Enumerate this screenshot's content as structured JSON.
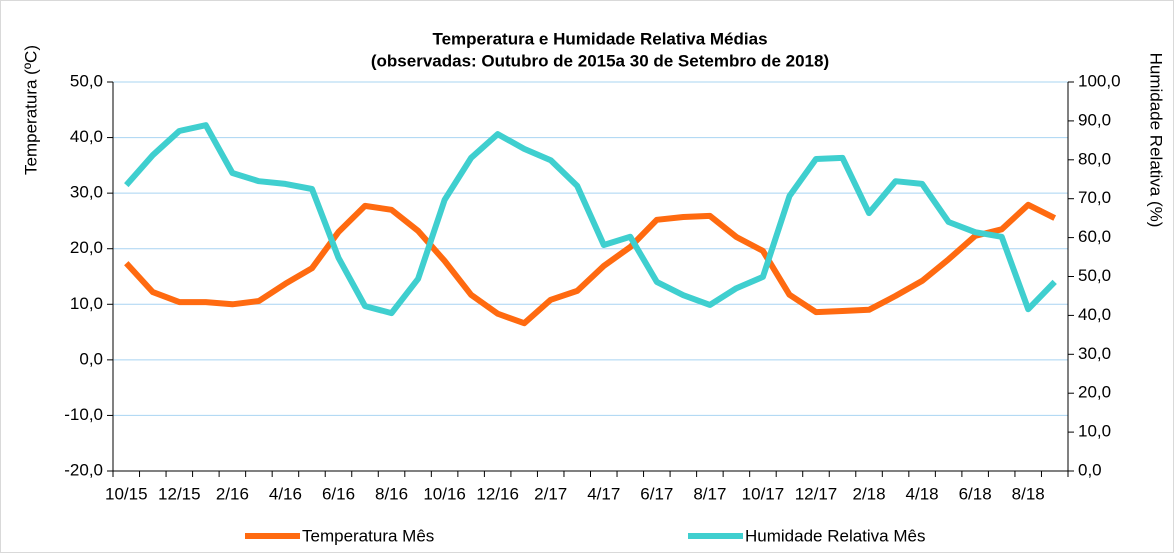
{
  "chart_data": {
    "type": "line",
    "title": "Temperatura e Humidade Relativa Médias",
    "subtitle": "(observadas: Outubro de 2015a 30 de Setembro de 2018)",
    "ylabel": "Temperatura (ºC)",
    "y2label": "Humidade Relativa (%)",
    "categories": [
      "10/15",
      null,
      "12/15",
      null,
      "2/16",
      null,
      "4/16",
      null,
      "6/16",
      null,
      "8/16",
      null,
      "10/16",
      null,
      "12/16",
      null,
      "2/17",
      null,
      "4/17",
      null,
      "6/17",
      null,
      "8/17",
      null,
      "10/17",
      null,
      "12/17",
      null,
      "2/18",
      null,
      "4/18",
      null,
      "6/18",
      null,
      "8/18",
      null
    ],
    "series": [
      {
        "name": "Temperatura Mês",
        "color": "#ff6a10",
        "axis": "y",
        "values": [
          17.4,
          12.2,
          10.4,
          10.4,
          10.0,
          10.6,
          13.7,
          16.5,
          23.0,
          27.7,
          27.0,
          23.2,
          17.8,
          11.7,
          8.3,
          6.6,
          10.8,
          12.4,
          16.9,
          20.3,
          25.2,
          25.7,
          25.9,
          22.1,
          19.6,
          11.7,
          8.6,
          8.8,
          9.0,
          11.5,
          14.2,
          18.1,
          22.3,
          23.5,
          27.9,
          25.5
        ]
      },
      {
        "name": "Humidade Relativa Mês",
        "color": "#3fcfcf",
        "axis": "y2",
        "values": [
          73.5,
          81.2,
          87.4,
          88.9,
          76.6,
          74.5,
          73.8,
          72.5,
          54.8,
          42.4,
          40.6,
          49.4,
          69.7,
          80.5,
          86.6,
          82.8,
          79.9,
          73.3,
          58.1,
          60.2,
          48.6,
          45.2,
          42.7,
          47.0,
          49.9,
          70.7,
          80.2,
          80.5,
          66.3,
          74.5,
          73.8,
          64.0,
          61.4,
          60.2,
          41.6,
          48.6
        ]
      }
    ],
    "ylim": [
      -20,
      50
    ],
    "yticks": [
      {
        "value": -20,
        "label": "-20,0"
      },
      {
        "value": -10,
        "label": "-10,0"
      },
      {
        "value": 0,
        "label": "0,0"
      },
      {
        "value": 10,
        "label": "10,0"
      },
      {
        "value": 20,
        "label": "20,0"
      },
      {
        "value": 30,
        "label": "30,0"
      },
      {
        "value": 40,
        "label": "40,0"
      },
      {
        "value": 50,
        "label": "50,0"
      }
    ],
    "y2lim": [
      0,
      100
    ],
    "y2ticks": [
      {
        "value": 0,
        "label": "0,0"
      },
      {
        "value": 10,
        "label": "10,0"
      },
      {
        "value": 20,
        "label": "20,0"
      },
      {
        "value": 30,
        "label": "30,0"
      },
      {
        "value": 40,
        "label": "40,0"
      },
      {
        "value": 50,
        "label": "50,0"
      },
      {
        "value": 60,
        "label": "60,0"
      },
      {
        "value": 70,
        "label": "70,0"
      },
      {
        "value": 80,
        "label": "80,0"
      },
      {
        "value": 90,
        "label": "90,0"
      },
      {
        "value": 100,
        "label": "100,0"
      }
    ],
    "grid": true
  }
}
